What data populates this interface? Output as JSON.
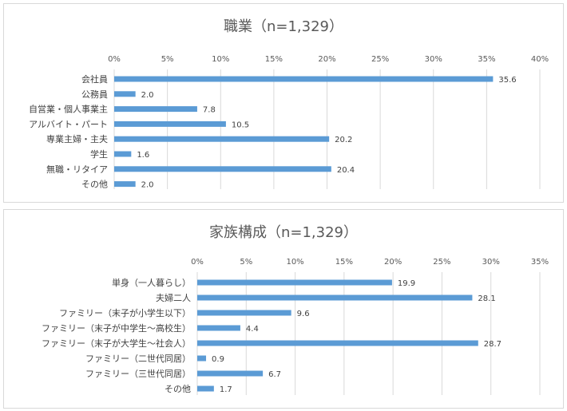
{
  "chart_data": [
    {
      "type": "bar",
      "orientation": "horizontal",
      "title": "職業（n=1,329）",
      "categories": [
        "会社員",
        "公務員",
        "自営業・個人事業主",
        "アルバイト・パート",
        "専業主婦・主夫",
        "学生",
        "無職・リタイア",
        "その他"
      ],
      "values": [
        35.6,
        2.0,
        7.8,
        10.5,
        20.2,
        1.6,
        20.4,
        2.0
      ],
      "value_labels": [
        "35.6",
        "2.0",
        "7.8",
        "10.5",
        "20.2",
        "1.6",
        "20.4",
        "2.0"
      ],
      "xlim": [
        0,
        40
      ],
      "ticks": [
        0,
        5,
        10,
        15,
        20,
        25,
        30,
        35,
        40
      ],
      "tick_labels": [
        "0%",
        "5%",
        "10%",
        "15%",
        "20%",
        "25%",
        "30%",
        "35%",
        "40%"
      ],
      "xlabel": "",
      "ylabel": "",
      "grid": true,
      "axis_position": "top",
      "bar_color": "#5b9bd5"
    },
    {
      "type": "bar",
      "orientation": "horizontal",
      "title": "家族構成（n=1,329）",
      "categories": [
        "単身（一人暮らし）",
        "夫婦二人",
        "ファミリー（末子が小学生以下）",
        "ファミリー（末子が中学生〜高校生）",
        "ファミリー（末子が大学生〜社会人）",
        "ファミリー（二世代同居）",
        "ファミリー（三世代同居）",
        "その他"
      ],
      "values": [
        19.9,
        28.1,
        9.6,
        4.4,
        28.7,
        0.9,
        6.7,
        1.7
      ],
      "value_labels": [
        "19.9",
        "28.1",
        "9.6",
        "4.4",
        "28.7",
        "0.9",
        "6.7",
        "1.7"
      ],
      "xlim": [
        0,
        35
      ],
      "ticks": [
        0,
        5,
        10,
        15,
        20,
        25,
        30,
        35
      ],
      "tick_labels": [
        "0%",
        "5%",
        "10%",
        "15%",
        "20%",
        "25%",
        "30%",
        "35%"
      ],
      "xlabel": "",
      "ylabel": "",
      "grid": true,
      "axis_position": "top",
      "bar_color": "#5b9bd5"
    }
  ]
}
